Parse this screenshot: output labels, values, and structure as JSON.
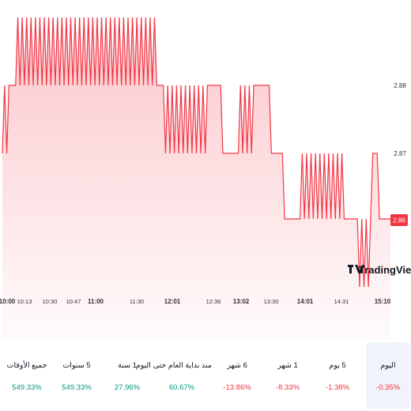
{
  "chart_data": {
    "type": "area",
    "y_axis_labels": [
      "2.88",
      "2.87"
    ],
    "price_tag": "2.86",
    "x_axis_labels": [
      {
        "text": "10:00",
        "major": true
      },
      {
        "text": "10:13",
        "major": false
      },
      {
        "text": "10:30",
        "major": false
      },
      {
        "text": "10:47",
        "major": false
      },
      {
        "text": "11:00",
        "major": true
      },
      {
        "text": "11:30",
        "major": false
      },
      {
        "text": "12:01",
        "major": true
      },
      {
        "text": "12:36",
        "major": false
      },
      {
        "text": "13:02",
        "major": true
      },
      {
        "text": "13:30",
        "major": false
      },
      {
        "text": "14:01",
        "major": true
      },
      {
        "text": "14:31",
        "major": false
      },
      {
        "text": "15:10",
        "major": true
      }
    ],
    "levels": [
      2.89,
      2.88,
      2.87,
      2.86,
      2.85
    ],
    "series_segments": [
      {
        "n": 4,
        "v": [
          2.87,
          2.88
        ]
      },
      {
        "n": 3,
        "v": [
          2.88
        ]
      },
      {
        "n": 64,
        "v": [
          2.89,
          2.88
        ]
      },
      {
        "n": 3,
        "v": [
          2.88
        ]
      },
      {
        "n": 20,
        "v": [
          2.87,
          2.88
        ]
      },
      {
        "n": 6,
        "v": [
          2.88
        ]
      },
      {
        "n": 8,
        "v": [
          2.87
        ]
      },
      {
        "n": 6,
        "v": [
          2.88,
          2.87
        ]
      },
      {
        "n": 8,
        "v": [
          2.88
        ]
      },
      {
        "n": 6,
        "v": [
          2.87
        ]
      },
      {
        "n": 8,
        "v": [
          2.86
        ]
      },
      {
        "n": 20,
        "v": [
          2.87,
          2.86
        ]
      },
      {
        "n": 6,
        "v": [
          2.86
        ]
      },
      {
        "n": 6,
        "v": [
          2.85,
          2.86
        ]
      },
      {
        "n": 3,
        "v": [
          2.87
        ]
      },
      {
        "n": 6,
        "v": [
          2.86
        ]
      }
    ],
    "line_color": "#f23645",
    "fill_color": "#f23645",
    "watermark": "TradingView"
  },
  "performance": [
    {
      "label": "اليوم",
      "value": "-0.35%",
      "direction": "down",
      "active": true
    },
    {
      "label": "5 يوم",
      "value": "-1.38%",
      "direction": "down",
      "active": false
    },
    {
      "label": "1 شهر",
      "value": "-8.33%",
      "direction": "down",
      "active": false
    },
    {
      "label": "6 شهر",
      "value": "-13.86%",
      "direction": "down",
      "active": false
    },
    {
      "label": "منذ بداية العام حتى اليوم",
      "value": "60.67%",
      "direction": "up",
      "active": false
    },
    {
      "label": "1 سنة",
      "value": "27.96%",
      "direction": "up",
      "active": false
    },
    {
      "label": "5 سنوات",
      "value": "549.33%",
      "direction": "up",
      "active": false
    },
    {
      "label": "جميع الأوقات",
      "value": "549.33%",
      "direction": "up",
      "active": false
    }
  ]
}
